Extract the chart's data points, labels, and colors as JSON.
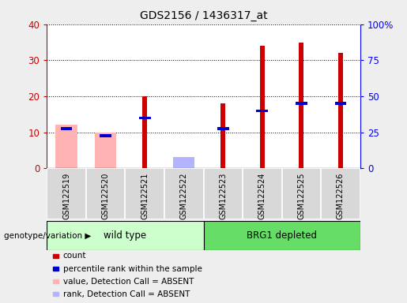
{
  "title": "GDS2156 / 1436317_at",
  "samples": [
    "GSM122519",
    "GSM122520",
    "GSM122521",
    "GSM122522",
    "GSM122523",
    "GSM122524",
    "GSM122525",
    "GSM122526"
  ],
  "count_values": [
    null,
    null,
    20,
    null,
    18,
    34,
    35,
    32
  ],
  "rank_values": [
    11,
    9,
    14,
    null,
    11,
    16,
    18,
    18
  ],
  "absent_value_values": [
    12,
    10,
    null,
    1,
    null,
    null,
    null,
    null
  ],
  "absent_rank_values": [
    null,
    null,
    null,
    3,
    null,
    null,
    null,
    null
  ],
  "count_color": "#cc0000",
  "rank_color": "#0000cc",
  "absent_value_color": "#ffb3b3",
  "absent_rank_color": "#b3b3ff",
  "ylim_left": [
    0,
    40
  ],
  "ylim_right": [
    0,
    100
  ],
  "yticks_left": [
    0,
    10,
    20,
    30,
    40
  ],
  "yticks_right": [
    0,
    25,
    50,
    75,
    100
  ],
  "ytick_labels_right": [
    "0",
    "25",
    "50",
    "75",
    "100%"
  ],
  "groups": [
    {
      "label": "wild type",
      "start": 0,
      "end": 3,
      "color": "#ccffcc"
    },
    {
      "label": "BRG1 depleted",
      "start": 4,
      "end": 7,
      "color": "#66dd66"
    }
  ],
  "group_label": "genotype/variation",
  "plot_bg_color": "#ffffff",
  "fig_bg_color": "#eeeeee",
  "legend_items": [
    {
      "label": "count",
      "color": "#cc0000"
    },
    {
      "label": "percentile rank within the sample",
      "color": "#0000cc"
    },
    {
      "label": "value, Detection Call = ABSENT",
      "color": "#ffb3b3"
    },
    {
      "label": "rank, Detection Call = ABSENT",
      "color": "#b3b3ff"
    }
  ]
}
